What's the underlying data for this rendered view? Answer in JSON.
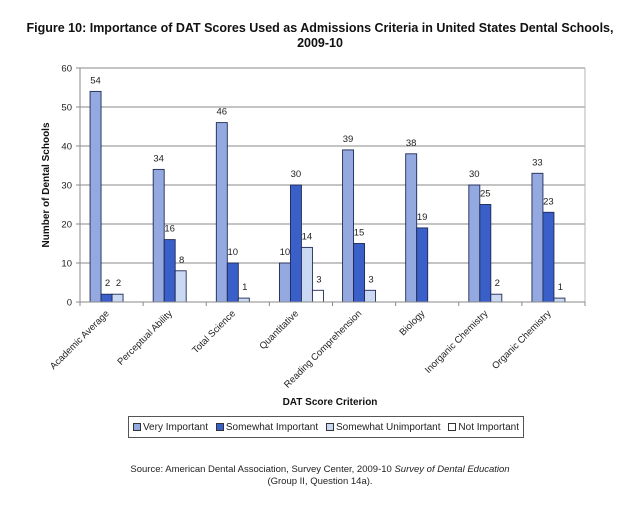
{
  "title_line1": "Figure 10: Importance of DAT Scores Used as Admissions Criteria in United States Dental Schools,",
  "title_line2": "2009-10",
  "chart_data": {
    "type": "bar",
    "title": "Figure 10: Importance of DAT Scores Used as Admissions Criteria in United States Dental Schools, 2009-10",
    "xlabel": "DAT Score Criterion",
    "ylabel": "Number of Dental Schools",
    "ylim": [
      0,
      60
    ],
    "yticks": [
      0,
      10,
      20,
      30,
      40,
      50,
      60
    ],
    "grid": true,
    "legend_position": "bottom",
    "categories": [
      "Academic Average",
      "Perceptual Ability",
      "Total Science",
      "Quantitative",
      "Reading Comprehension",
      "Biology",
      "Inorganic Chemistry",
      "Organic Chemistry"
    ],
    "series": [
      {
        "name": "Very Important",
        "color": "#93a9e0",
        "values": [
          54,
          34,
          46,
          10,
          39,
          38,
          30,
          33
        ]
      },
      {
        "name": "Somewhat Important",
        "color": "#3a5fc8",
        "values": [
          2,
          16,
          10,
          30,
          15,
          19,
          25,
          23
        ]
      },
      {
        "name": "Somewhat Unimportant",
        "color": "#cbd8f2",
        "values": [
          2,
          8,
          1,
          14,
          3,
          0,
          2,
          1
        ]
      },
      {
        "name": "Not Important",
        "color": "#ffffff",
        "values": [
          0,
          0,
          0,
          3,
          0,
          0,
          0,
          0
        ]
      }
    ]
  },
  "source": {
    "prefix": "Source: American Dental Association, Survey Center, 2009-10 ",
    "italic": "Survey of Dental Education",
    "line2": "(Group II, Question 14a)."
  }
}
